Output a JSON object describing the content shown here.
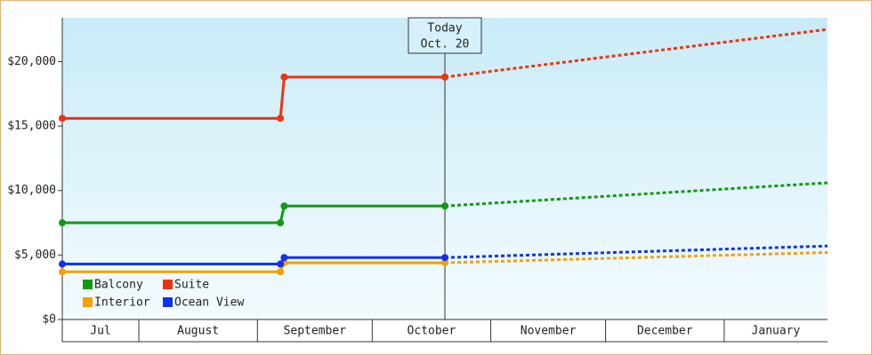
{
  "chart_data": {
    "type": "line",
    "x": [
      0,
      57,
      58,
      100
    ],
    "projection_x": [
      100,
      200
    ],
    "xlim": [
      0,
      200
    ],
    "months": [
      {
        "label": "Jul",
        "start": 0,
        "end": 20
      },
      {
        "label": "August",
        "start": 20,
        "end": 51
      },
      {
        "label": "September",
        "start": 51,
        "end": 81
      },
      {
        "label": "October",
        "start": 81,
        "end": 112
      },
      {
        "label": "November",
        "start": 112,
        "end": 142
      },
      {
        "label": "December",
        "start": 142,
        "end": 173
      },
      {
        "label": "January",
        "start": 173,
        "end": 200
      }
    ],
    "ylim": [
      0,
      23400
    ],
    "yticks": [
      {
        "value": 0,
        "label": "$0"
      },
      {
        "value": 5000,
        "label": "$5,000"
      },
      {
        "value": 10000,
        "label": "$10,000"
      },
      {
        "value": 15000,
        "label": "$15,000"
      },
      {
        "value": 20000,
        "label": "$20,000"
      }
    ],
    "annotation": {
      "x": 100,
      "lines": [
        "Today",
        "Oct. 20"
      ]
    },
    "series": [
      {
        "name": "Balcony",
        "color": "#119911",
        "values": [
          7500,
          7500,
          8800,
          8800
        ],
        "projection": [
          8800,
          10600
        ]
      },
      {
        "name": "Suite",
        "color": "#ee3311",
        "values": [
          15600,
          15600,
          18800,
          18800
        ],
        "projection": [
          18800,
          22500
        ]
      },
      {
        "name": "Interior",
        "color": "#f5a000",
        "values": [
          3700,
          3700,
          4400,
          4400
        ],
        "projection": [
          4400,
          5200
        ]
      },
      {
        "name": "Ocean View",
        "color": "#1133ee",
        "values": [
          4300,
          4300,
          4800,
          4800
        ],
        "projection": [
          4800,
          5700
        ]
      }
    ]
  }
}
